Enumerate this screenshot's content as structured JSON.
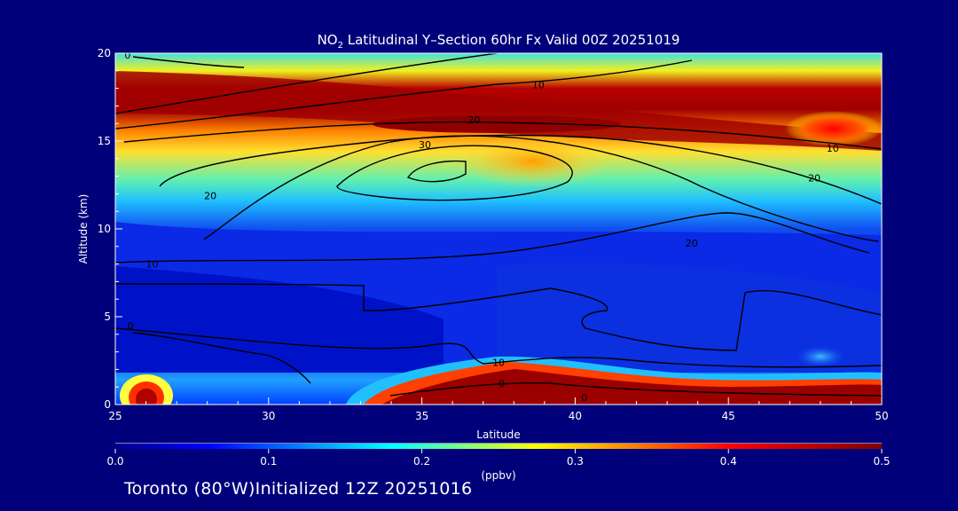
{
  "chart_data": {
    "type": "heatmap",
    "title_prefix": "NO",
    "title_subscript": "2",
    "title_suffix": " Latitudinal Y–Section 60hr  Fx Valid 00Z 20251019",
    "xlabel": "Latitude",
    "ylabel": "Altitude (km)",
    "xlim": [
      25,
      50
    ],
    "ylim": [
      0,
      20
    ],
    "x_ticks": [
      "25",
      "30",
      "35",
      "40",
      "45",
      "50"
    ],
    "y_ticks": [
      "0",
      "5",
      "10",
      "15",
      "20"
    ],
    "colorbar": {
      "units": "(ppbv)",
      "ticks": [
        "0.0",
        "0.1",
        "0.2",
        "0.3",
        "0.4",
        "0.5"
      ],
      "range": [
        0.0,
        0.5
      ]
    },
    "contour_labels": [
      {
        "text": "0",
        "lat": 25.4,
        "alt": 19.9
      },
      {
        "text": "10",
        "lat": 38.8,
        "alt": 18.2
      },
      {
        "text": "20",
        "lat": 36.7,
        "alt": 16.2
      },
      {
        "text": "30",
        "lat": 35.1,
        "alt": 14.8
      },
      {
        "text": "10",
        "lat": 48.4,
        "alt": 14.6
      },
      {
        "text": "20",
        "lat": 47.8,
        "alt": 12.9
      },
      {
        "text": "20",
        "lat": 28.1,
        "alt": 11.9
      },
      {
        "text": "20",
        "lat": 43.8,
        "alt": 9.2
      },
      {
        "text": "10",
        "lat": 26.2,
        "alt": 8.0
      },
      {
        "text": "0",
        "lat": 25.5,
        "alt": 4.5
      },
      {
        "text": "10",
        "lat": 37.5,
        "alt": 2.4
      },
      {
        "text": "0",
        "lat": 37.6,
        "alt": 1.2
      },
      {
        "text": "0",
        "lat": 40.3,
        "alt": 0.4
      }
    ],
    "footer": "Toronto (80°W)Initialized 12Z 20251016"
  }
}
